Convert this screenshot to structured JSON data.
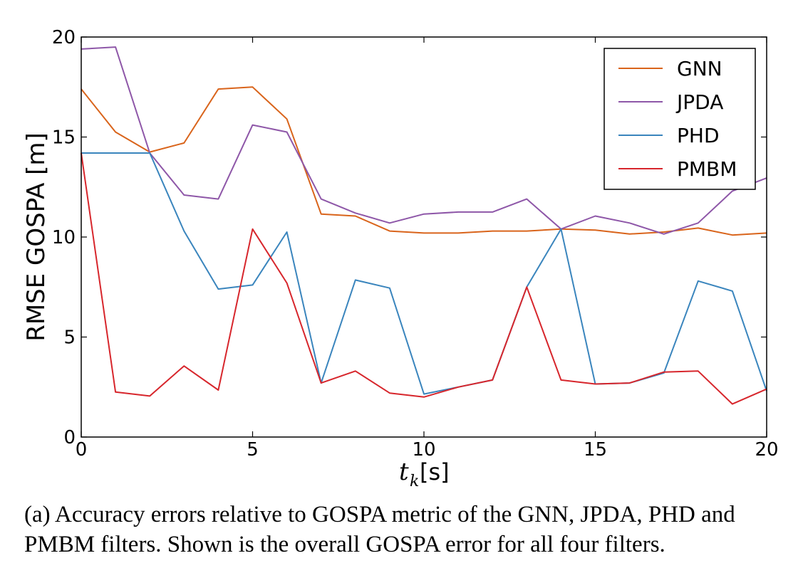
{
  "chart_data": {
    "type": "line",
    "xlabel_var": "t",
    "xlabel_sub": "k",
    "xlabel_unit": "[s]",
    "ylabel": "RMSE GOSPA [m]",
    "xlim": [
      0,
      20
    ],
    "ylim": [
      0,
      20
    ],
    "xticks": [
      0,
      5,
      10,
      15,
      20
    ],
    "yticks": [
      0,
      5,
      10,
      15,
      20
    ],
    "grid": false,
    "legend_position": "top-right",
    "x": [
      0,
      1,
      2,
      3,
      4,
      5,
      6,
      7,
      8,
      9,
      10,
      11,
      12,
      13,
      14,
      15,
      16,
      17,
      18,
      19,
      20
    ],
    "series": [
      {
        "name": "GNN",
        "color": "#d9641b",
        "values": [
          17.4,
          15.25,
          14.25,
          14.7,
          17.4,
          17.5,
          15.9,
          11.15,
          11.05,
          10.3,
          10.2,
          10.2,
          10.3,
          10.3,
          10.4,
          10.35,
          10.15,
          10.25,
          10.45,
          10.1,
          10.2
        ]
      },
      {
        "name": "JPDA",
        "color": "#8e57a8",
        "values": [
          19.4,
          19.5,
          14.2,
          12.1,
          11.9,
          15.6,
          15.25,
          11.9,
          11.2,
          10.7,
          11.15,
          11.25,
          11.25,
          11.9,
          10.4,
          11.05,
          10.7,
          10.15,
          10.7,
          12.3,
          12.95
        ]
      },
      {
        "name": "PHD",
        "color": "#3a85bd",
        "values": [
          14.2,
          14.2,
          14.2,
          10.3,
          7.4,
          7.6,
          10.25,
          2.7,
          7.85,
          7.45,
          2.15,
          2.5,
          2.85,
          7.5,
          10.4,
          2.65,
          2.7,
          3.2,
          7.8,
          7.3,
          2.3
        ]
      },
      {
        "name": "PMBM",
        "color": "#d7262c",
        "values": [
          14.2,
          2.25,
          2.05,
          3.55,
          2.35,
          10.4,
          7.7,
          2.7,
          3.3,
          2.2,
          2.0,
          2.5,
          2.85,
          7.5,
          2.85,
          2.65,
          2.7,
          3.25,
          3.3,
          1.65,
          2.4
        ]
      }
    ]
  },
  "caption": "(a) Accuracy errors relative to GOSPA metric of the GNN, JPDA, PHD and PMBM filters. Shown is the overall GOSPA error for all four filters."
}
